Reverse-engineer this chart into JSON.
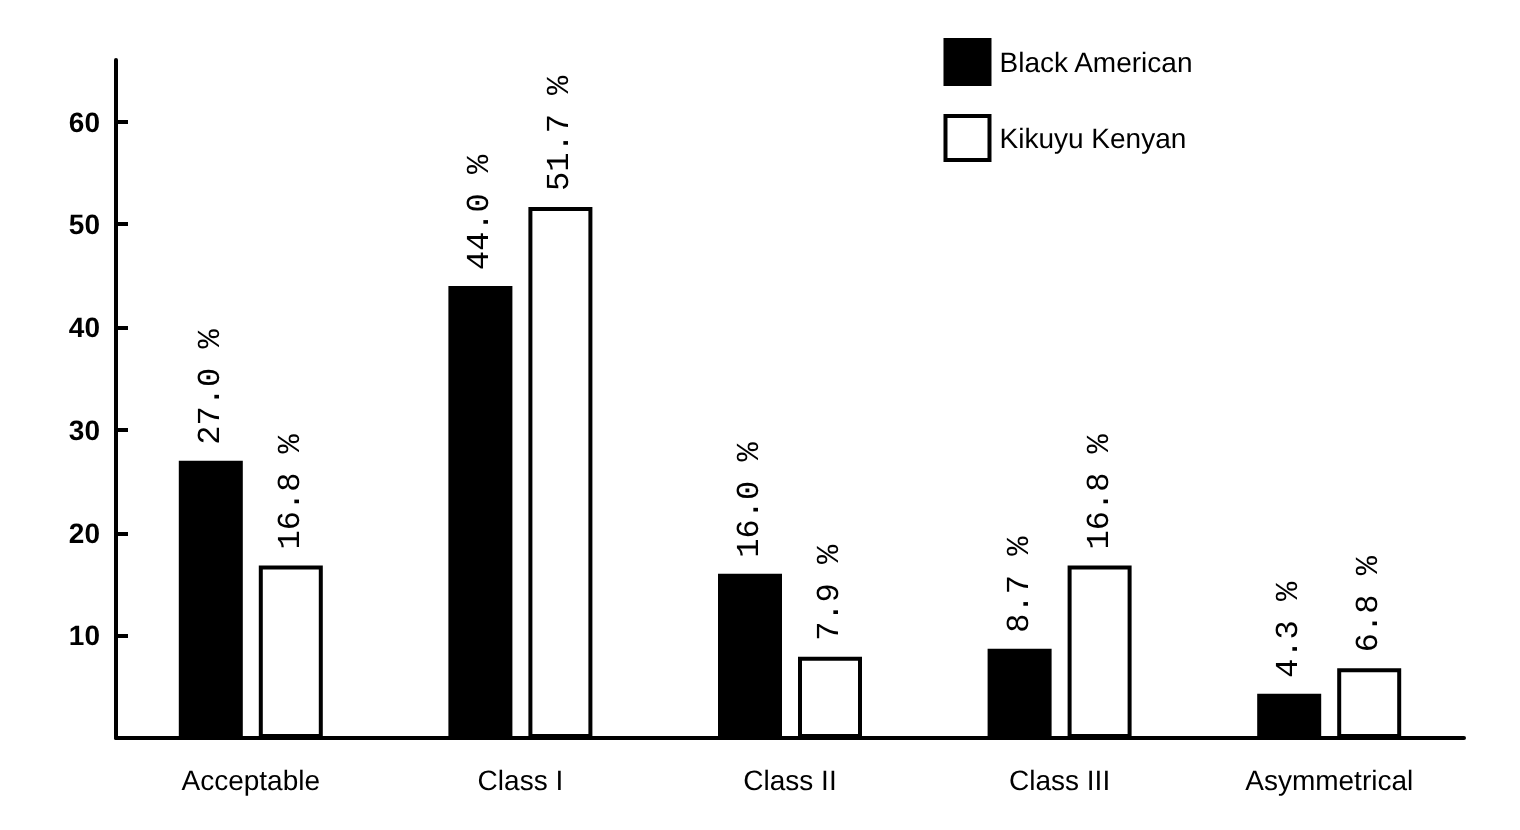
{
  "chart_data": {
    "type": "bar",
    "categories": [
      "Acceptable",
      "Class I",
      "Class II",
      "Class III",
      "Asymmetrical"
    ],
    "series": [
      {
        "name": "Black American",
        "color": "#000000",
        "values": [
          27.0,
          44.0,
          16.0,
          8.7,
          4.3
        ],
        "value_labels": [
          "27.0 %",
          "44.0 %",
          "16.0 %",
          "8.7 %",
          "4.3 %"
        ]
      },
      {
        "name": "Kikuyu Kenyan",
        "color": "#ffffff",
        "values": [
          16.8,
          51.7,
          7.9,
          16.8,
          6.8
        ],
        "value_labels": [
          "16.8 %",
          "51.7 %",
          "7.9 %",
          "16.8 %",
          "6.8 %"
        ]
      }
    ],
    "ylim": [
      0,
      66
    ],
    "yticks": [
      10,
      20,
      30,
      40,
      50,
      60
    ],
    "grid": false,
    "legend": "top right"
  }
}
